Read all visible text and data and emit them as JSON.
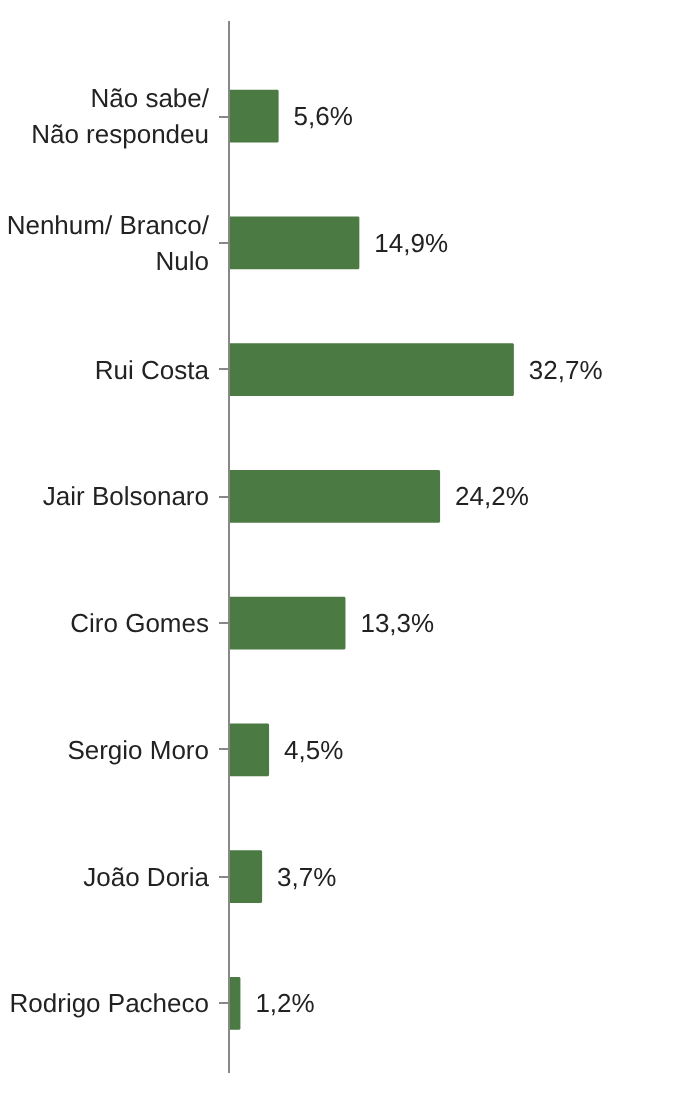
{
  "chart_data": {
    "type": "bar",
    "orientation": "horizontal",
    "categories": [
      "Não sabe/\nNão respondeu",
      "Nenhum/ Branco/\nNulo",
      "Rui Costa",
      "Jair Bolsonaro",
      "Ciro Gomes",
      "Sergio Moro",
      "João Doria",
      "Rodrigo Pacheco"
    ],
    "values": [
      5.6,
      14.9,
      32.7,
      24.2,
      13.3,
      4.5,
      3.7,
      1.2
    ],
    "value_labels": [
      "5,6%",
      "14,9%",
      "32,7%",
      "24,2%",
      "13,3%",
      "4,5%",
      "3,7%",
      "1,2%"
    ],
    "color": "#4b7a43"
  }
}
